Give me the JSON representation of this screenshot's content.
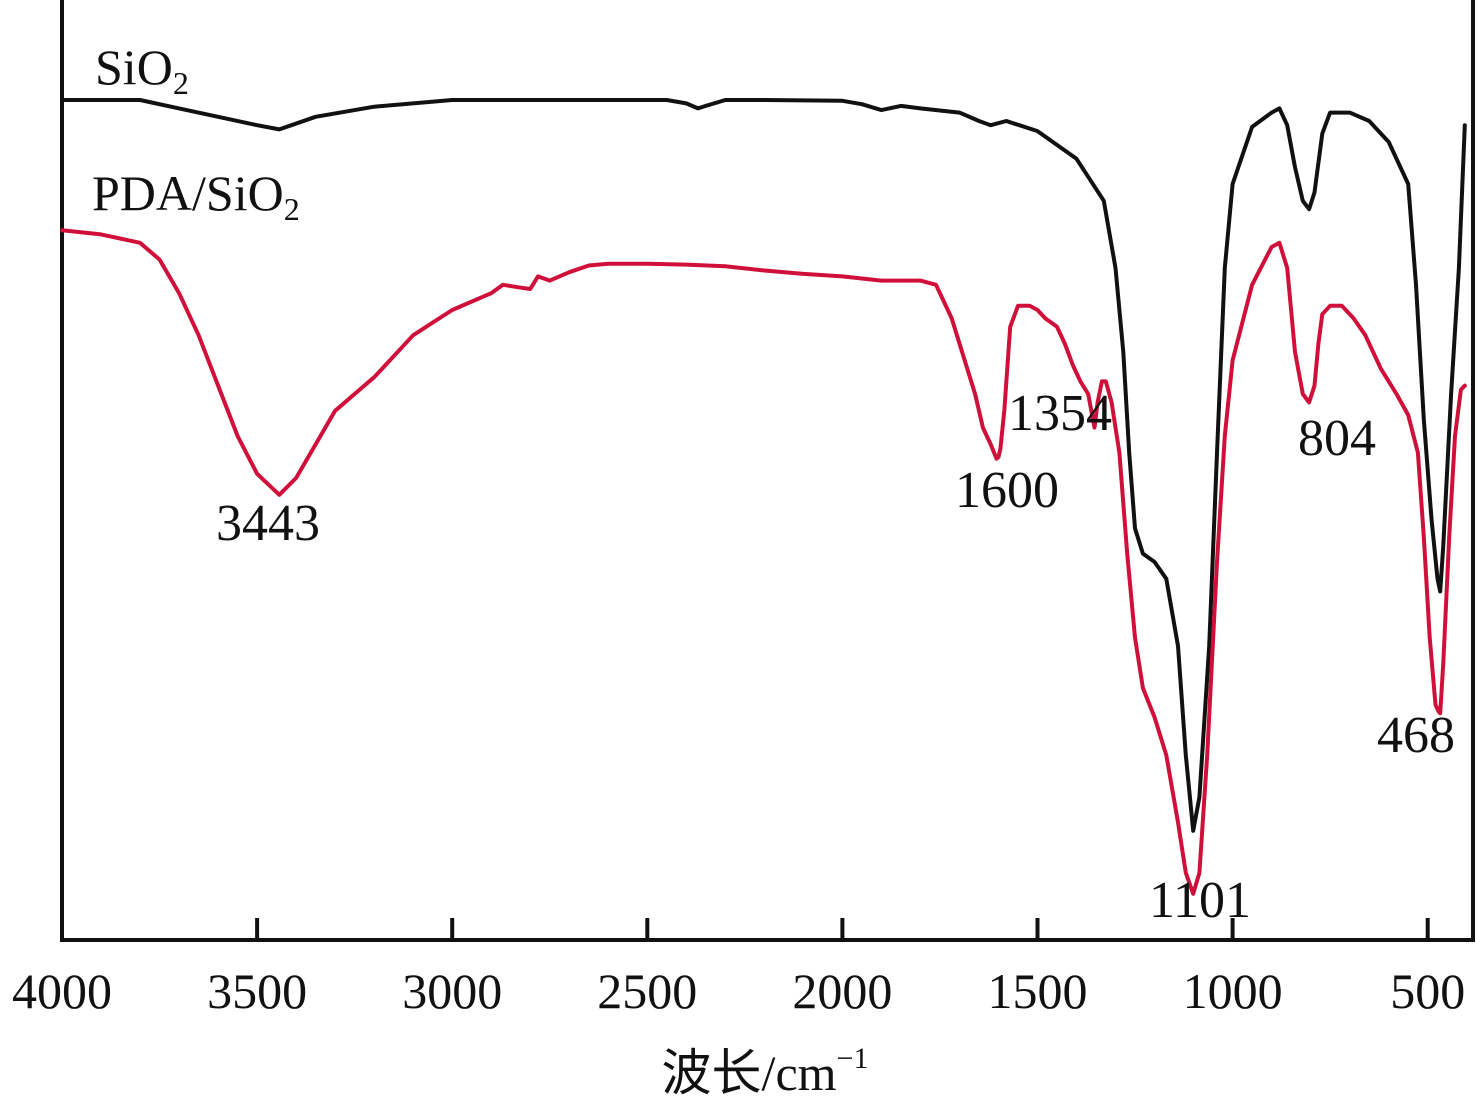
{
  "chart_data": {
    "type": "line",
    "title": "",
    "xlabel": "波长/cm",
    "xlabel_superscript": "−1",
    "ylabel": "",
    "xlim": [
      4000,
      400
    ],
    "x_reversed": true,
    "xticks": [
      4000,
      3500,
      3000,
      2500,
      2000,
      1500,
      1000,
      500
    ],
    "xtick_labels": [
      "4000",
      "3500",
      "3000",
      "2500",
      "2000",
      "1500",
      "1000",
      "500"
    ],
    "y_axis_shown": false,
    "grid": false,
    "legend": "none",
    "series": [
      {
        "name": "SiO",
        "name_subscript": "2",
        "color": "#111111",
        "points": [
          [
            4000,
            100
          ],
          [
            3800,
            100
          ],
          [
            3700,
            99
          ],
          [
            3600,
            98
          ],
          [
            3500,
            97
          ],
          [
            3443,
            96.5
          ],
          [
            3350,
            98
          ],
          [
            3200,
            99.2
          ],
          [
            3000,
            100
          ],
          [
            2800,
            100
          ],
          [
            2600,
            100
          ],
          [
            2450,
            100
          ],
          [
            2400,
            99.6
          ],
          [
            2370,
            99
          ],
          [
            2350,
            99.3
          ],
          [
            2300,
            100
          ],
          [
            2200,
            100
          ],
          [
            2000,
            99.9
          ],
          [
            1950,
            99.5
          ],
          [
            1900,
            98.8
          ],
          [
            1850,
            99.3
          ],
          [
            1800,
            99
          ],
          [
            1700,
            98.5
          ],
          [
            1650,
            97.5
          ],
          [
            1620,
            97
          ],
          [
            1580,
            97.5
          ],
          [
            1500,
            96.3
          ],
          [
            1400,
            93
          ],
          [
            1330,
            88
          ],
          [
            1300,
            80
          ],
          [
            1280,
            70
          ],
          [
            1265,
            58
          ],
          [
            1250,
            49
          ],
          [
            1230,
            46
          ],
          [
            1200,
            45
          ],
          [
            1170,
            43
          ],
          [
            1140,
            35
          ],
          [
            1120,
            22
          ],
          [
            1101,
            13
          ],
          [
            1085,
            17
          ],
          [
            1060,
            35
          ],
          [
            1040,
            58
          ],
          [
            1020,
            80
          ],
          [
            1000,
            90
          ],
          [
            950,
            96.8
          ],
          [
            900,
            98.5
          ],
          [
            880,
            99
          ],
          [
            860,
            97
          ],
          [
            840,
            92
          ],
          [
            820,
            88
          ],
          [
            804,
            87
          ],
          [
            790,
            89
          ],
          [
            770,
            96
          ],
          [
            750,
            98.5
          ],
          [
            700,
            98.5
          ],
          [
            650,
            97.5
          ],
          [
            600,
            95
          ],
          [
            550,
            90
          ],
          [
            530,
            78
          ],
          [
            510,
            62
          ],
          [
            490,
            50
          ],
          [
            475,
            43
          ],
          [
            468,
            41.5
          ],
          [
            460,
            47
          ],
          [
            440,
            65
          ],
          [
            420,
            80
          ],
          [
            405,
            97
          ]
        ]
      },
      {
        "name": "PDA/SiO",
        "name_subscript": "2",
        "color": "#d0103a",
        "points": [
          [
            4000,
            84.5
          ],
          [
            3900,
            84
          ],
          [
            3800,
            83
          ],
          [
            3750,
            81
          ],
          [
            3700,
            77
          ],
          [
            3650,
            72
          ],
          [
            3600,
            66
          ],
          [
            3550,
            60
          ],
          [
            3500,
            55.5
          ],
          [
            3443,
            53
          ],
          [
            3400,
            55
          ],
          [
            3350,
            59
          ],
          [
            3300,
            63
          ],
          [
            3250,
            65
          ],
          [
            3200,
            67
          ],
          [
            3100,
            72
          ],
          [
            3000,
            75
          ],
          [
            2900,
            77
          ],
          [
            2870,
            78
          ],
          [
            2830,
            77.7
          ],
          [
            2800,
            77.5
          ],
          [
            2780,
            79
          ],
          [
            2750,
            78.5
          ],
          [
            2700,
            79.5
          ],
          [
            2650,
            80.3
          ],
          [
            2600,
            80.5
          ],
          [
            2500,
            80.5
          ],
          [
            2400,
            80.4
          ],
          [
            2300,
            80.2
          ],
          [
            2200,
            79.7
          ],
          [
            2100,
            79.3
          ],
          [
            2000,
            79
          ],
          [
            1900,
            78.5
          ],
          [
            1800,
            78.5
          ],
          [
            1760,
            78
          ],
          [
            1740,
            76
          ],
          [
            1720,
            74
          ],
          [
            1700,
            71
          ],
          [
            1680,
            68
          ],
          [
            1660,
            65
          ],
          [
            1640,
            61
          ],
          [
            1620,
            59
          ],
          [
            1605,
            57.3
          ],
          [
            1600,
            57.5
          ],
          [
            1595,
            58.5
          ],
          [
            1585,
            63
          ],
          [
            1570,
            73
          ],
          [
            1550,
            75.5
          ],
          [
            1520,
            75.5
          ],
          [
            1500,
            75
          ],
          [
            1480,
            74
          ],
          [
            1450,
            73
          ],
          [
            1430,
            71
          ],
          [
            1410,
            68.5
          ],
          [
            1390,
            66.5
          ],
          [
            1370,
            65
          ],
          [
            1360,
            62.5
          ],
          [
            1354,
            61
          ],
          [
            1346,
            64
          ],
          [
            1335,
            66.5
          ],
          [
            1325,
            66.5
          ],
          [
            1310,
            64
          ],
          [
            1290,
            58
          ],
          [
            1270,
            46
          ],
          [
            1250,
            36
          ],
          [
            1230,
            30
          ],
          [
            1200,
            26.5
          ],
          [
            1170,
            22
          ],
          [
            1140,
            14
          ],
          [
            1120,
            8
          ],
          [
            1101,
            5.5
          ],
          [
            1085,
            8
          ],
          [
            1065,
            22
          ],
          [
            1040,
            45
          ],
          [
            1020,
            60
          ],
          [
            1000,
            69
          ],
          [
            950,
            78
          ],
          [
            900,
            82.5
          ],
          [
            880,
            83
          ],
          [
            860,
            80
          ],
          [
            840,
            70
          ],
          [
            820,
            65
          ],
          [
            804,
            64
          ],
          [
            790,
            66
          ],
          [
            780,
            71
          ],
          [
            770,
            74.5
          ],
          [
            750,
            75.5
          ],
          [
            720,
            75.5
          ],
          [
            690,
            74
          ],
          [
            660,
            72
          ],
          [
            620,
            68
          ],
          [
            580,
            65
          ],
          [
            550,
            62.5
          ],
          [
            525,
            58
          ],
          [
            510,
            48
          ],
          [
            495,
            36
          ],
          [
            480,
            28
          ],
          [
            472,
            27.2
          ],
          [
            468,
            27
          ],
          [
            460,
            33
          ],
          [
            445,
            48
          ],
          [
            430,
            60
          ],
          [
            415,
            65.5
          ],
          [
            405,
            66
          ]
        ]
      }
    ],
    "annotations": [
      "3443",
      "1600",
      "1354",
      "1101",
      "804",
      "468"
    ]
  }
}
